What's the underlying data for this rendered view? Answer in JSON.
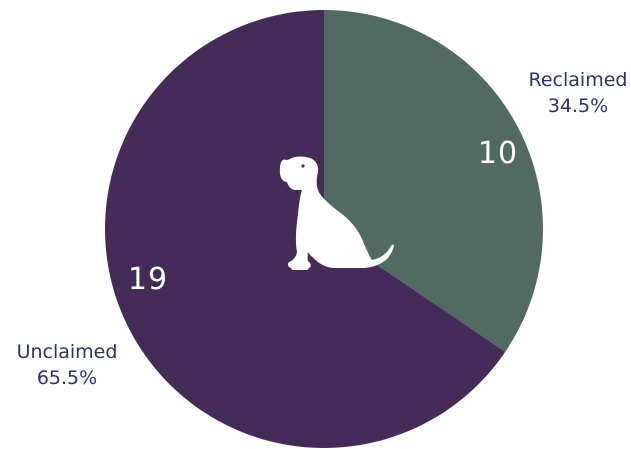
{
  "chart_data": {
    "type": "pie",
    "title": "",
    "slices": [
      {
        "label": "Reclaimed",
        "value": 10,
        "percent_label": "34.5%",
        "color": "#516b62"
      },
      {
        "label": "Unclaimed",
        "value": 19,
        "percent_label": "65.5%",
        "color": "#452c58"
      }
    ],
    "start_angle_deg": 0,
    "direction": "clockwise",
    "center_icon": "dog-sitting-icon",
    "icon_color": "#ffffff",
    "label_color": "#2a3560",
    "value_label_color": "#ffffff"
  }
}
